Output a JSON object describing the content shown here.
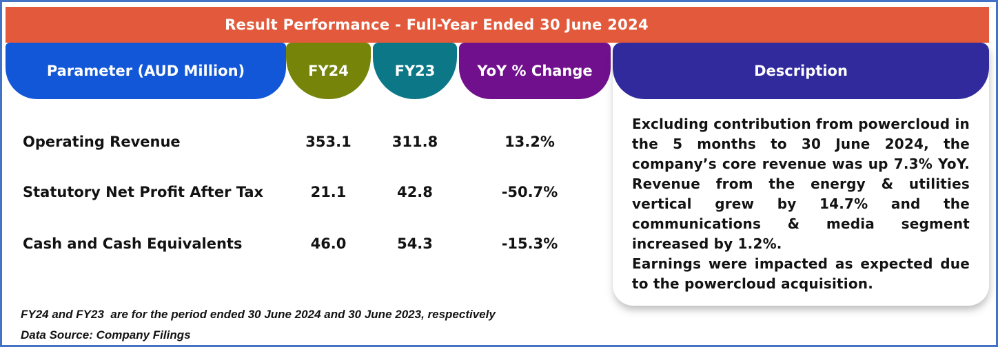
{
  "banner": {
    "title": "Result Performance - Full-Year Ended 30 June 2024"
  },
  "table": {
    "headers": {
      "parameter": "Parameter (AUD Million)",
      "fy24": "FY24",
      "fy23": "FY23",
      "yoy": "YoY % Change",
      "description": "Description"
    },
    "rows": [
      {
        "parameter": "Operating Revenue",
        "fy24": "353.1",
        "fy23": "311.8",
        "yoy": "13.2%"
      },
      {
        "parameter": "Statutory Net Profit After Tax",
        "fy24": "21.1",
        "fy23": "42.8",
        "yoy": "-50.7%"
      },
      {
        "parameter": "Cash and Cash Equivalents",
        "fy24": "46.0",
        "fy23": "54.3",
        "yoy": "-15.3%"
      }
    ]
  },
  "description": {
    "paragraph_1": "Excluding contribution from powercloud in the 5 months to 30 June 2024, the company’s core revenue was up 7.3% YoY. Revenue from the energy & utilities vertical grew by 14.7% and the communications & media segment increased by 1.2%.",
    "paragraph_2": "Earnings were impacted as expected due to the powercloud acquisition."
  },
  "footnotes": {
    "period_note": "FY24 and FY23  are for the period ended 30 June 2024 and 30 June 2023, respectively",
    "source_note": "Data Source: Company Filings"
  },
  "colors": {
    "frame_border": "#4472C4",
    "banner": "#E25A3B",
    "parameter_pill": "#1157D8",
    "fy24_pill": "#76850A",
    "fy23_pill": "#0B7787",
    "yoy_pill": "#70108C",
    "description_header": "#312A9C",
    "text": "#121212"
  },
  "chart_data": {
    "type": "table",
    "title": "Result Performance - Full-Year Ended 30 June 2024",
    "columns": [
      "Parameter (AUD Million)",
      "FY24",
      "FY23",
      "YoY % Change"
    ],
    "rows": [
      [
        "Operating Revenue",
        353.1,
        311.8,
        "13.2%"
      ],
      [
        "Statutory Net Profit After Tax",
        21.1,
        42.8,
        "-50.7%"
      ],
      [
        "Cash and Cash Equivalents",
        46.0,
        54.3,
        "-15.3%"
      ]
    ],
    "description": "Excluding contribution from powercloud in the 5 months to 30 June 2024, the company’s core revenue was up 7.3% YoY. Revenue from the energy & utilities vertical grew by 14.7% and the communications & media segment increased by 1.2%. Earnings were impacted as expected due to the powercloud acquisition.",
    "notes": [
      "FY24 and FY23  are for the period ended 30 June 2024 and 30 June 2023, respectively",
      "Data Source: Company Filings"
    ]
  }
}
